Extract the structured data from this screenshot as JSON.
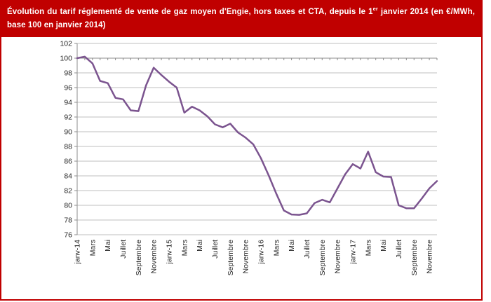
{
  "header": {
    "title_prefix": "Évolution du tarif réglementé de vente de gaz moyen d'Engie, hors taxes et CTA, depuis le 1",
    "title_sup": "er",
    "title_suffix": " janvier 2014 (en €/MWh, base 100 en janvier 2014)"
  },
  "colors": {
    "banner_background": "#C00000",
    "banner_text": "#FFFFFF",
    "outer_border": "#C00000",
    "gridline": "#BFBFBF",
    "axis": "#8C8C8C",
    "tick_label": "#262626",
    "line": "#7B548F"
  },
  "chart_data": {
    "type": "line",
    "title": "",
    "x_tick_labels": [
      "janv-14",
      "Mars",
      "Mai",
      "Juillet",
      "Septembre",
      "Novembre",
      "janv-15",
      "Mars",
      "Mai",
      "Juillet",
      "Septembre",
      "Novembre",
      "janv-16",
      "Mars",
      "Mai",
      "Juillet",
      "Septembre",
      "Novembre",
      "janv-17",
      "Mars",
      "Mai",
      "Juillet",
      "Septembre",
      "Novembre"
    ],
    "x_tick_every": 2,
    "n_points": 48,
    "y_tick_labels": [
      76,
      78,
      80,
      82,
      84,
      86,
      88,
      90,
      92,
      94,
      96,
      98,
      100,
      102
    ],
    "ylim": [
      76,
      102
    ],
    "ytick_step": 2,
    "x_axis_cross_at": 100,
    "grid": true,
    "legend_position": "none",
    "series": [
      {
        "color": "#7B548F",
        "values": [
          100.0,
          100.2,
          99.3,
          96.9,
          96.6,
          94.6,
          94.4,
          92.9,
          92.8,
          96.3,
          98.7,
          97.7,
          96.8,
          96.0,
          92.6,
          93.4,
          92.9,
          92.1,
          91.0,
          90.6,
          91.1,
          89.9,
          89.2,
          88.3,
          86.4,
          84.1,
          81.6,
          79.3,
          78.75,
          78.7,
          78.9,
          80.3,
          80.75,
          80.4,
          82.3,
          84.2,
          85.6,
          85.0,
          87.3,
          84.5,
          83.9,
          83.85,
          80.0,
          79.6,
          79.6,
          80.9,
          82.3,
          83.3
        ]
      }
    ]
  }
}
